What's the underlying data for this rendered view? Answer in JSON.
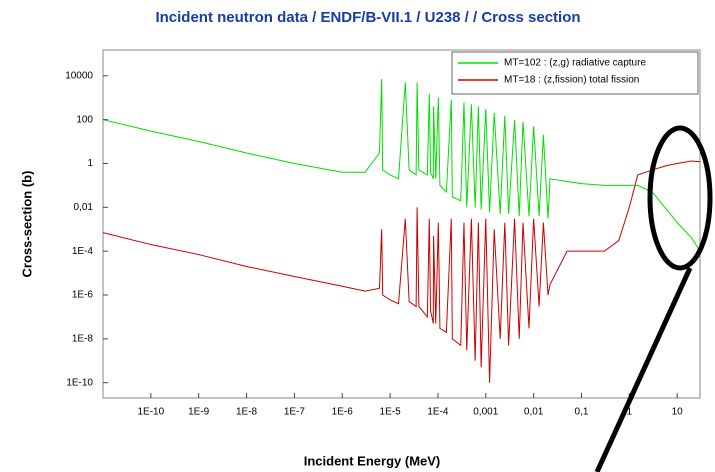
{
  "chart_data": {
    "type": "line",
    "title": "Incident neutron data / ENDF/B-VII.1 / U238 / / Cross section",
    "xlabel": "Incident Energy (MeV)",
    "ylabel": "Cross-section (b)",
    "xscale": "log",
    "yscale": "log",
    "grid": false,
    "legend": "upper right",
    "xlim": [
      1e-11,
      30
    ],
    "ylim": [
      2e-11,
      150000
    ],
    "xticks": [
      {
        "value": 1e-10,
        "label": "1E-10"
      },
      {
        "value": 1e-09,
        "label": "1E-9"
      },
      {
        "value": 1e-08,
        "label": "1E-8"
      },
      {
        "value": 1e-07,
        "label": "1E-7"
      },
      {
        "value": 1e-06,
        "label": "1E-6"
      },
      {
        "value": 1e-05,
        "label": "1E-5"
      },
      {
        "value": 0.0001,
        "label": "1E-4"
      },
      {
        "value": 0.001,
        "label": "0,001"
      },
      {
        "value": 0.01,
        "label": "0,01"
      },
      {
        "value": 0.1,
        "label": "0,1"
      },
      1,
      10
    ],
    "yticks": [
      {
        "value": 1e-10,
        "label": "1E-10"
      },
      {
        "value": 1e-08,
        "label": "1E-8"
      },
      {
        "value": 1e-06,
        "label": "1E-6"
      },
      {
        "value": 0.0001,
        "label": "1E-4"
      },
      {
        "value": 0.01,
        "label": "0,01"
      },
      1,
      100,
      10000
    ],
    "x": [
      1e-11,
      1e-10,
      1e-09,
      1e-08,
      1e-07,
      1e-06,
      3e-06,
      6e-06,
      6.67e-06,
      7e-06,
      1e-05,
      1.5e-05,
      2.08e-05,
      2.5e-05,
      3.5e-05,
      3.67e-05,
      4e-05,
      6e-05,
      6.6e-05,
      7e-05,
      8e-05,
      8.1e-05,
      9e-05,
      0.000102,
      0.00011,
      0.00015,
      0.00019,
      0.0002,
      0.0003,
      0.00035,
      0.0004,
      0.0005,
      0.0006,
      0.0007,
      0.0008,
      0.001,
      0.0012,
      0.0015,
      0.002,
      0.0025,
      0.003,
      0.004,
      0.005,
      0.006,
      0.008,
      0.01,
      0.013,
      0.016,
      0.02,
      0.022,
      0.05,
      0.1,
      0.3,
      0.6,
      1,
      1.5,
      3,
      6,
      10,
      20,
      30
    ],
    "series": [
      {
        "name": "MT=102 : (z,g) radiative capture",
        "color": "#00e000",
        "values": [
          100,
          30,
          10,
          3,
          1,
          0.4,
          0.4,
          3,
          7000,
          0.5,
          0.3,
          0.2,
          5000,
          0.5,
          0.3,
          5000,
          0.5,
          0.3,
          1500,
          0.4,
          0.2,
          400,
          0.2,
          1000,
          0.1,
          0.05,
          800,
          0.03,
          0.02,
          600,
          0.01,
          500,
          0.01,
          400,
          0.008,
          300,
          0.006,
          200,
          0.005,
          150,
          0.005,
          100,
          0.004,
          80,
          0.004,
          50,
          0.004,
          20,
          0.003,
          0.2,
          0.15,
          0.12,
          0.1,
          0.1,
          0.1,
          0.1,
          0.05,
          0.008,
          0.002,
          0.0004,
          0.0001
        ]
      },
      {
        "name": "MT=18 : (z,fission) total fission",
        "color": "#cc0000",
        "values": [
          0.0007,
          0.0002,
          7e-05,
          2e-05,
          7e-06,
          2.5e-06,
          1.5e-06,
          2e-06,
          0.001,
          1e-06,
          6e-07,
          4e-07,
          0.003,
          5e-07,
          3e-07,
          0.01,
          3e-07,
          1e-07,
          0.003,
          2e-07,
          5e-08,
          0.0005,
          5e-08,
          0.002,
          3e-08,
          2e-08,
          0.003,
          1e-08,
          5e-09,
          0.002,
          3e-09,
          0.003,
          1e-09,
          0.002,
          5e-10,
          0.003,
          1e-10,
          0.001,
          1e-08,
          0.002,
          5e-09,
          0.003,
          1e-08,
          0.002,
          3e-08,
          0.003,
          3e-07,
          0.002,
          1e-06,
          3e-06,
          0.0001,
          0.0001,
          0.0001,
          0.0003,
          0.01,
          0.3,
          0.5,
          0.8,
          1,
          1.3,
          1.2
        ]
      }
    ]
  }
}
